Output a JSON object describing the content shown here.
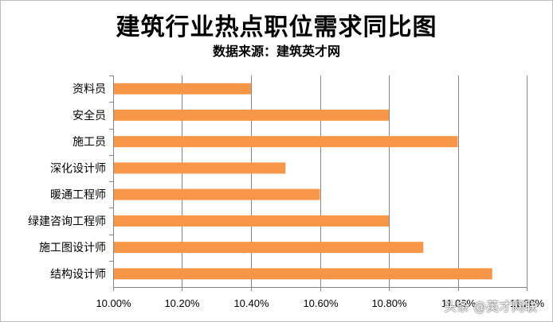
{
  "chart_data": {
    "type": "bar",
    "orientation": "horizontal",
    "title": "建筑行业热点职位需求同比图",
    "subtitle": "数据来源：建筑英才网",
    "categories": [
      "资料员",
      "安全员",
      "施工员",
      "深化设计师",
      "暖通工程师",
      "绿建咨询工程师",
      "施工图设计师",
      "结构设计师"
    ],
    "values": [
      10.4,
      10.8,
      11.0,
      10.5,
      10.6,
      10.8,
      10.9,
      11.1
    ],
    "x_ticks": [
      "10.00%",
      "10.20%",
      "10.40%",
      "10.60%",
      "10.80%",
      "11.00%",
      "11.20%"
    ],
    "xlim": [
      10.0,
      11.2
    ],
    "grid": true,
    "bar_color": "#f79646"
  },
  "watermark": "头条 @英才网联"
}
